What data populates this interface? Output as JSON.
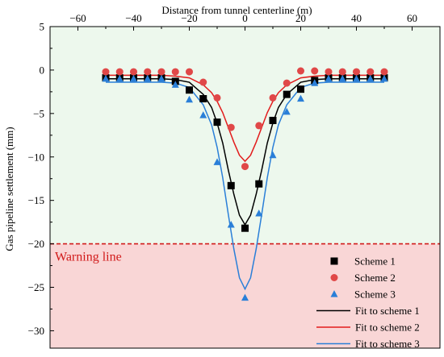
{
  "chart_data": {
    "type": "scatter",
    "title": "",
    "xlabel": "Distance from tunnel centerline (m)",
    "ylabel": "Gas pipeline settlement (mm)",
    "x_axis_position": "top",
    "xlim": [
      -70,
      70
    ],
    "ylim": [
      -32,
      5
    ],
    "x_ticks": [
      -60,
      -40,
      -20,
      0,
      20,
      40,
      60
    ],
    "y_ticks": [
      5,
      0,
      -5,
      -10,
      -15,
      -20,
      -25,
      -30
    ],
    "grid": false,
    "legend_position": "bottom-right",
    "background_zones": [
      {
        "range": [
          -20,
          5
        ],
        "color": "#edf8ed"
      },
      {
        "range": [
          -32,
          -20
        ],
        "color": "#f9d6d6"
      }
    ],
    "reference_lines": [
      {
        "y": -20,
        "label": "Warning line",
        "color": "#d11a1a",
        "style": "dashed"
      }
    ],
    "series": [
      {
        "name": "Scheme 1",
        "kind": "scatter",
        "marker": "square",
        "color": "#000000",
        "x": [
          -50,
          -45,
          -40,
          -35,
          -30,
          -25,
          -20,
          -15,
          -10,
          -5,
          0,
          5,
          10,
          15,
          20,
          25,
          30,
          35,
          40,
          45,
          50
        ],
        "y": [
          -0.9,
          -0.9,
          -0.9,
          -0.9,
          -0.9,
          -1.3,
          -2.3,
          -3.3,
          -6.0,
          -13.3,
          -18.2,
          -13.1,
          -5.8,
          -2.8,
          -2.2,
          -1.2,
          -0.9,
          -0.9,
          -0.9,
          -0.9,
          -0.9
        ]
      },
      {
        "name": "Scheme 2",
        "kind": "scatter",
        "marker": "circle",
        "color": "#e04848",
        "x": [
          -50,
          -45,
          -40,
          -35,
          -30,
          -25,
          -20,
          -15,
          -10,
          -5,
          0,
          5,
          10,
          15,
          20,
          25,
          30,
          35,
          40,
          45,
          50
        ],
        "y": [
          -0.2,
          -0.2,
          -0.2,
          -0.2,
          -0.2,
          -0.2,
          -0.2,
          -1.4,
          -3.2,
          -6.6,
          -11.1,
          -6.4,
          -3.2,
          -1.5,
          -0.1,
          -0.1,
          -0.2,
          -0.2,
          -0.2,
          -0.2,
          -0.2
        ]
      },
      {
        "name": "Scheme 3",
        "kind": "scatter",
        "marker": "triangle",
        "color": "#2a7fd8",
        "x": [
          -50,
          -45,
          -40,
          -35,
          -30,
          -25,
          -20,
          -15,
          -10,
          -5,
          0,
          5,
          10,
          15,
          20,
          25,
          30,
          35,
          40,
          45,
          50
        ],
        "y": [
          -1.0,
          -1.0,
          -1.0,
          -1.0,
          -1.0,
          -1.7,
          -3.4,
          -5.2,
          -10.6,
          -17.8,
          -26.2,
          -16.5,
          -9.8,
          -4.8,
          -3.3,
          -1.5,
          -1.0,
          -1.0,
          -1.0,
          -1.0,
          -1.0
        ]
      },
      {
        "name": "Fit to scheme 1",
        "kind": "line",
        "color": "#000000",
        "x": [
          -50,
          -40,
          -30,
          -25,
          -20,
          -15,
          -12,
          -10,
          -8,
          -6,
          -4,
          -2,
          0,
          2,
          4,
          6,
          8,
          10,
          12,
          15,
          20,
          25,
          30,
          40,
          50
        ],
        "y": [
          -1.0,
          -1.0,
          -1.0,
          -1.1,
          -1.4,
          -2.8,
          -4.3,
          -6.1,
          -8.4,
          -11.5,
          -14.3,
          -16.7,
          -17.8,
          -16.7,
          -14.3,
          -11.5,
          -8.4,
          -6.1,
          -4.3,
          -2.8,
          -1.4,
          -1.1,
          -1.0,
          -1.0,
          -1.0
        ]
      },
      {
        "name": "Fit to scheme 2",
        "kind": "line",
        "color": "#e21c1c",
        "x": [
          -50,
          -40,
          -30,
          -25,
          -20,
          -15,
          -12,
          -10,
          -8,
          -6,
          -4,
          -2,
          0,
          2,
          4,
          6,
          8,
          10,
          12,
          15,
          20,
          25,
          30,
          40,
          50
        ],
        "y": [
          -0.6,
          -0.6,
          -0.6,
          -0.7,
          -0.9,
          -1.7,
          -2.6,
          -3.6,
          -4.9,
          -6.6,
          -8.3,
          -9.8,
          -10.5,
          -9.8,
          -8.3,
          -6.6,
          -4.9,
          -3.6,
          -2.6,
          -1.7,
          -0.9,
          -0.7,
          -0.6,
          -0.6,
          -0.6
        ]
      },
      {
        "name": "Fit to scheme 3",
        "kind": "line",
        "color": "#2a7fd8",
        "x": [
          -50,
          -40,
          -30,
          -25,
          -20,
          -15,
          -12,
          -10,
          -8,
          -6,
          -4,
          -2,
          0,
          2,
          4,
          6,
          8,
          10,
          12,
          15,
          20,
          25,
          30,
          40,
          50
        ],
        "y": [
          -1.4,
          -1.4,
          -1.4,
          -1.5,
          -2.0,
          -4.0,
          -6.3,
          -8.9,
          -12.4,
          -16.6,
          -20.6,
          -23.9,
          -25.2,
          -23.9,
          -20.6,
          -16.6,
          -12.4,
          -8.9,
          -6.3,
          -4.0,
          -2.0,
          -1.5,
          -1.4,
          -1.4,
          -1.4
        ]
      }
    ]
  }
}
